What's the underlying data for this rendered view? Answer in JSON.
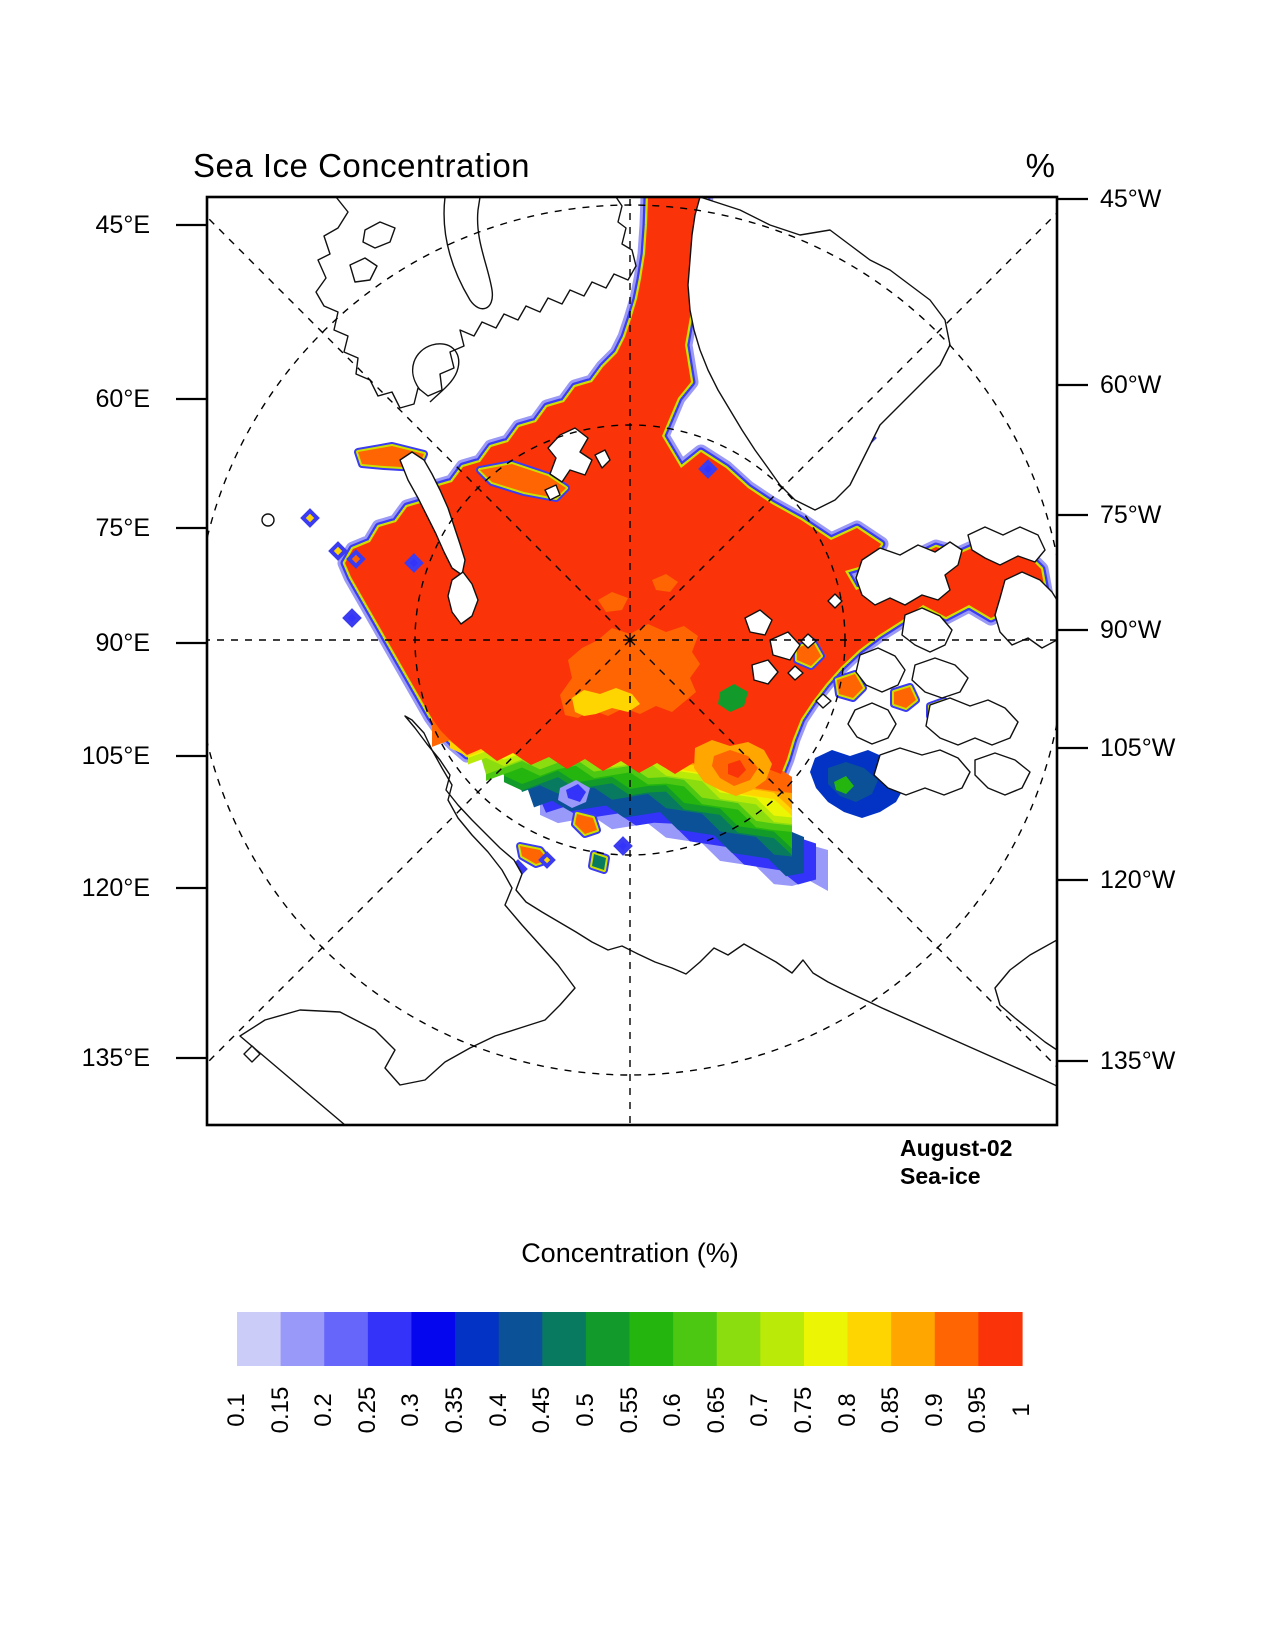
{
  "header": {
    "title": "Sea Ice Concentration",
    "units_label": "%"
  },
  "map": {
    "date_label": "August-02",
    "layer_label": "Sea-ice",
    "left_axis_labels": [
      "45°E",
      "60°E",
      "75°E",
      "90°E",
      "105°E",
      "120°E",
      "135°E"
    ],
    "right_axis_labels": [
      "45°W",
      "60°W",
      "75°W",
      "90°W",
      "105°W",
      "120°W",
      "135°W"
    ],
    "coast_color": "#111111",
    "land_color": "#ffffff",
    "ocean_color": "#ffffff",
    "graticule_color": "#000000",
    "frame_color": "#000000",
    "ice_edge_fringe_blue": "#3b3cf2",
    "ice_edge_fringe_softblue": "#9a9af6",
    "ice_edge_fringe_yellow": "#cde000"
  },
  "colorbar": {
    "title": "Concentration (%)",
    "tick_labels": [
      "0.1",
      "0.15",
      "0.2",
      "0.25",
      "0.3",
      "0.35",
      "0.4",
      "0.45",
      "0.5",
      "0.55",
      "0.6",
      "0.65",
      "0.7",
      "0.75",
      "0.8",
      "0.85",
      "0.9",
      "0.95",
      "1"
    ],
    "colors": [
      "#ccccf8",
      "#9999fa",
      "#6666fa",
      "#3333fa",
      "#0505ee",
      "#0233c4",
      "#0b5198",
      "#087a60",
      "#129b2a",
      "#24b50f",
      "#4cc712",
      "#8cdd10",
      "#baea08",
      "#ecf504",
      "#ffd501",
      "#ffa600",
      "#ff6502",
      "#fa3408"
    ]
  },
  "chart_data": {
    "type": "heatmap",
    "title": "Sea Ice Concentration",
    "units": "%",
    "annotation_date": "August-02",
    "annotation_variable": "Sea-ice",
    "colorbar_title": "Concentration (%)",
    "levels": [
      0.1,
      0.15,
      0.2,
      0.25,
      0.3,
      0.35,
      0.4,
      0.45,
      0.5,
      0.55,
      0.6,
      0.65,
      0.7,
      0.75,
      0.8,
      0.85,
      0.9,
      0.95,
      1
    ],
    "level_colors": [
      "#ccccf8",
      "#9999fa",
      "#6666fa",
      "#3333fa",
      "#0505ee",
      "#0233c4",
      "#0b5198",
      "#087a60",
      "#129b2a",
      "#24b50f",
      "#4cc712",
      "#8cdd10",
      "#baea08",
      "#ecf504",
      "#ffd501",
      "#ffa600",
      "#ff6502",
      "#fa3408"
    ],
    "projection_meridian_labels_east": [
      "45°E",
      "60°E",
      "75°E",
      "90°E",
      "105°E",
      "120°E",
      "135°E"
    ],
    "projection_meridian_labels_west": [
      "45°W",
      "60°W",
      "75°W",
      "90°W",
      "105°W",
      "120°W",
      "135°W"
    ],
    "description": "Arctic polar stereographic map; central pack near 1 (95-100%), concentrations decreasing to 0.1-0.3 along the Siberian-side marginal ice zone"
  }
}
